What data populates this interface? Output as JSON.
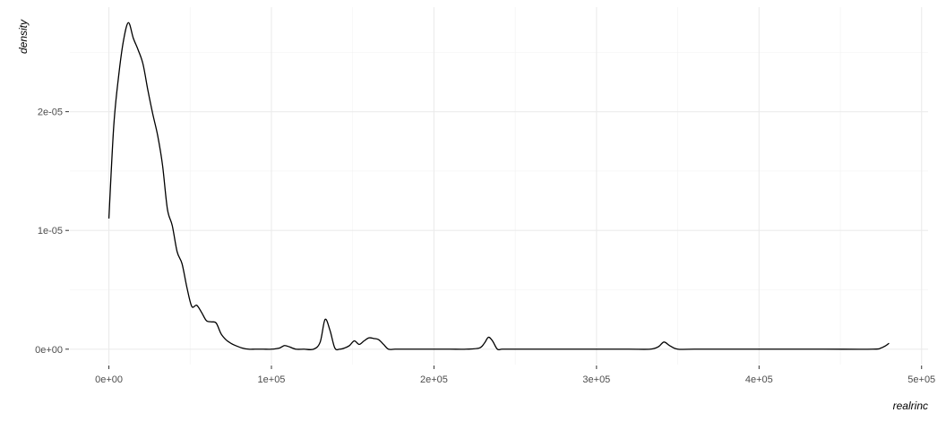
{
  "chart_data": {
    "type": "line",
    "title": "",
    "xlabel": "realrinc",
    "ylabel": "density",
    "xlim": [
      -24000,
      504000
    ],
    "ylim": [
      -1.3e-06,
      2.88e-05
    ],
    "x_ticks": [
      {
        "value": 0,
        "label": "0e+00"
      },
      {
        "value": 100000,
        "label": "1e+05"
      },
      {
        "value": 200000,
        "label": "2e+05"
      },
      {
        "value": 300000,
        "label": "3e+05"
      },
      {
        "value": 400000,
        "label": "4e+05"
      },
      {
        "value": 500000,
        "label": "5e+05"
      }
    ],
    "y_ticks": [
      {
        "value": 0,
        "label": "0e+00"
      },
      {
        "value": 1e-05,
        "label": "1e-05"
      },
      {
        "value": 2e-05,
        "label": "2e-05"
      }
    ],
    "grid": true,
    "series": [
      {
        "color": "#000000",
        "x": [
          0,
          3000,
          6000,
          9000,
          12000,
          15000,
          18000,
          21000,
          24000,
          27000,
          30000,
          33000,
          36000,
          39000,
          42000,
          45000,
          48000,
          51000,
          54000,
          57000,
          60000,
          63000,
          66000,
          69000,
          72000,
          75000,
          78000,
          82000,
          86000,
          90000,
          95000,
          100000,
          105000,
          108000,
          111000,
          115000,
          120000,
          126000,
          130000,
          133000,
          136000,
          139000,
          142000,
          145000,
          148000,
          151000,
          154000,
          157000,
          160000,
          163000,
          166000,
          169000,
          172000,
          176000,
          182000,
          190000,
          200000,
          210000,
          220000,
          228000,
          231000,
          233500,
          236000,
          239000,
          242000,
          250000,
          270000,
          300000,
          320000,
          333000,
          338000,
          341500,
          345000,
          350000,
          360000,
          400000,
          440000,
          470000,
          475000,
          478000,
          480000
        ],
        "y": [
          1.1e-05,
          1.88e-05,
          2.3e-05,
          2.6e-05,
          2.75e-05,
          2.62e-05,
          2.52e-05,
          2.4e-05,
          2.18e-05,
          1.98e-05,
          1.8e-05,
          1.55e-05,
          1.18e-05,
          1.04e-05,
          8.2e-06,
          7.2e-06,
          5.2e-06,
          3.6e-06,
          3.7e-06,
          3.1e-06,
          2.4e-06,
          2.3e-06,
          2.2e-06,
          1.3e-06,
          8e-07,
          5e-07,
          3e-07,
          1e-07,
          0,
          0,
          0,
          0,
          1e-07,
          3e-07,
          2e-07,
          0,
          0,
          0,
          6e-07,
          2.5e-06,
          1.6e-06,
          1e-07,
          0,
          1e-07,
          3e-07,
          7e-07,
          4e-07,
          7e-07,
          9.5e-07,
          9e-07,
          8e-07,
          4e-07,
          0,
          0,
          0,
          0,
          0,
          0,
          0,
          1e-07,
          5e-07,
          1e-06,
          7e-07,
          0,
          0,
          0,
          0,
          0,
          0,
          0,
          2e-07,
          6e-07,
          3e-07,
          0,
          0,
          0,
          0,
          0,
          1e-07,
          3e-07,
          5e-07
        ]
      }
    ]
  }
}
